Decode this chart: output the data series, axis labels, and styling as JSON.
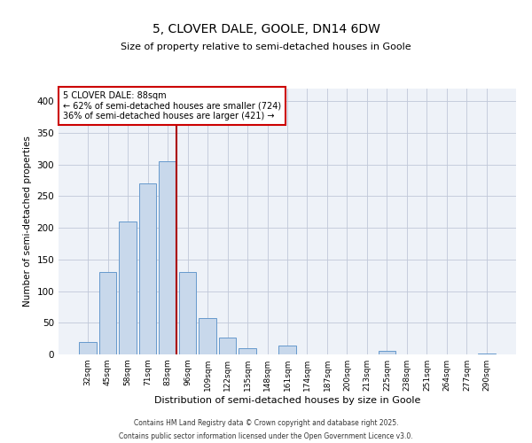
{
  "title": "5, CLOVER DALE, GOOLE, DN14 6DW",
  "subtitle": "Size of property relative to semi-detached houses in Goole",
  "xlabel": "Distribution of semi-detached houses by size in Goole",
  "ylabel": "Number of semi-detached properties",
  "bar_labels": [
    "32sqm",
    "45sqm",
    "58sqm",
    "71sqm",
    "83sqm",
    "96sqm",
    "109sqm",
    "122sqm",
    "135sqm",
    "148sqm",
    "161sqm",
    "174sqm",
    "187sqm",
    "200sqm",
    "213sqm",
    "225sqm",
    "238sqm",
    "251sqm",
    "264sqm",
    "277sqm",
    "290sqm"
  ],
  "bar_values": [
    20,
    130,
    210,
    270,
    305,
    130,
    58,
    27,
    10,
    0,
    14,
    0,
    0,
    0,
    0,
    5,
    0,
    0,
    0,
    0,
    2
  ],
  "bar_color": "#c8d8eb",
  "bar_edge_color": "#6699cc",
  "vline_x_index": 4,
  "vline_color": "#aa0000",
  "annotation_title": "5 CLOVER DALE: 88sqm",
  "annotation_line1": "← 62% of semi-detached houses are smaller (724)",
  "annotation_line2": "36% of semi-detached houses are larger (421) →",
  "annotation_box_color": "#cc0000",
  "ylim_max": 420,
  "yticks": [
    0,
    50,
    100,
    150,
    200,
    250,
    300,
    350,
    400
  ],
  "footer1": "Contains HM Land Registry data © Crown copyright and database right 2025.",
  "footer2": "Contains public sector information licensed under the Open Government Licence v3.0.",
  "bg_color": "#ffffff",
  "plot_bg_color": "#eef2f8",
  "grid_color": "#c0c8d8"
}
